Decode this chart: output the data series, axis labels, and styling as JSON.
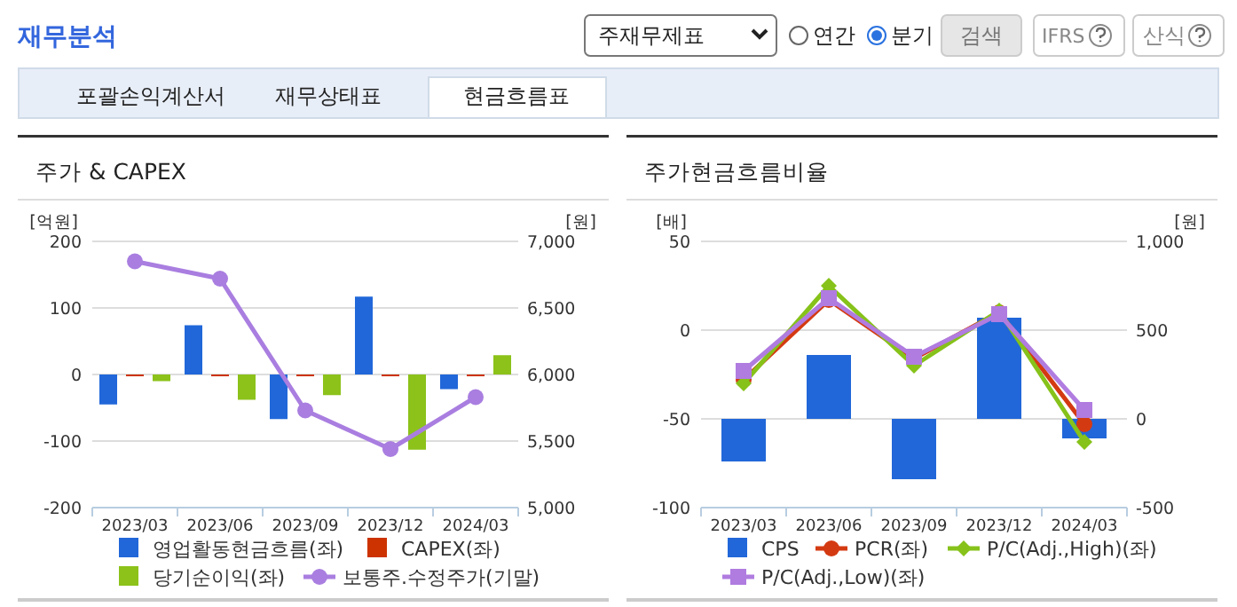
{
  "chart_data": [
    {
      "type": "bar",
      "title": "주가 & CAPEX",
      "ylabel": "[억원]",
      "y2label": "[원]",
      "categories": [
        "2023/03",
        "2023/06",
        "2023/09",
        "2023/12",
        "2024/03"
      ],
      "series": [
        {
          "name": "영업활동현금흐름(좌)",
          "color": "#2167d9",
          "values": [
            -45,
            74,
            -67,
            117,
            -22
          ]
        },
        {
          "name": "CAPEX(좌)",
          "color": "#cc3300",
          "values": [
            -2,
            -2,
            -2,
            -2,
            -2
          ]
        },
        {
          "name": "당기순이익(좌)",
          "color": "#8cc21a",
          "values": [
            -10,
            -38,
            -31,
            -113,
            29
          ]
        },
        {
          "name": "보통주.수정주가(기말)",
          "type": "line",
          "axis": "y2",
          "marker": "circle",
          "color": "#a97ee0",
          "values": [
            6850,
            6720,
            5730,
            5440,
            5830
          ]
        }
      ],
      "ylim": [
        -200,
        200
      ],
      "yticks": [
        -200,
        -100,
        0,
        100,
        200
      ],
      "y2lim": [
        5000,
        7000
      ],
      "y2ticks": [
        {
          "value": 5000,
          "label": "5,000"
        },
        {
          "value": 5500,
          "label": "5,500"
        },
        {
          "value": 6000,
          "label": "6,000"
        },
        {
          "value": 6500,
          "label": "6,500"
        },
        {
          "value": 7000,
          "label": "7,000"
        }
      ],
      "grid": "y",
      "legend": "bottom",
      "annotations": [
        "재무분석",
        "주재무제표",
        "연간",
        "분기",
        "검색",
        "IFRS",
        "산식",
        "포괄손익계산서",
        "재무상태표",
        "현금흐름표"
      ]
    },
    {
      "type": "bar",
      "title": "주가현금흐름비율",
      "ylabel": "[배]",
      "y2label": "[원]",
      "categories": [
        "2023/03",
        "2023/06",
        "2023/09",
        "2023/12",
        "2024/03"
      ],
      "series": [
        {
          "name": "CPS",
          "color": "#2167d9",
          "axis": "y2",
          "values": [
            -240,
            360,
            -340,
            570,
            -110
          ]
        },
        {
          "name": "PCR(좌)",
          "type": "line",
          "marker": "circle",
          "color": "#d43a12",
          "values": [
            -28,
            17,
            -16,
            10,
            -53
          ]
        },
        {
          "name": "P/C(Adj.,High)(좌)",
          "type": "line",
          "marker": "diamond",
          "color": "#86c21a",
          "values": [
            -30,
            25,
            -20,
            11,
            -63
          ]
        },
        {
          "name": "P/C(Adj.,Low)(좌)",
          "type": "line",
          "marker": "square",
          "color": "#b07ce0",
          "values": [
            -23,
            18,
            -15,
            9,
            -45
          ]
        }
      ],
      "ylim": [
        -100,
        50
      ],
      "yticks": [
        -100,
        -50,
        0,
        50
      ],
      "y2lim": [
        -500,
        1000
      ],
      "y2ticks": [
        -500,
        0,
        500,
        {
          "value": 1000,
          "label": "1,000"
        }
      ],
      "grid": "y",
      "legend": "bottom"
    }
  ]
}
